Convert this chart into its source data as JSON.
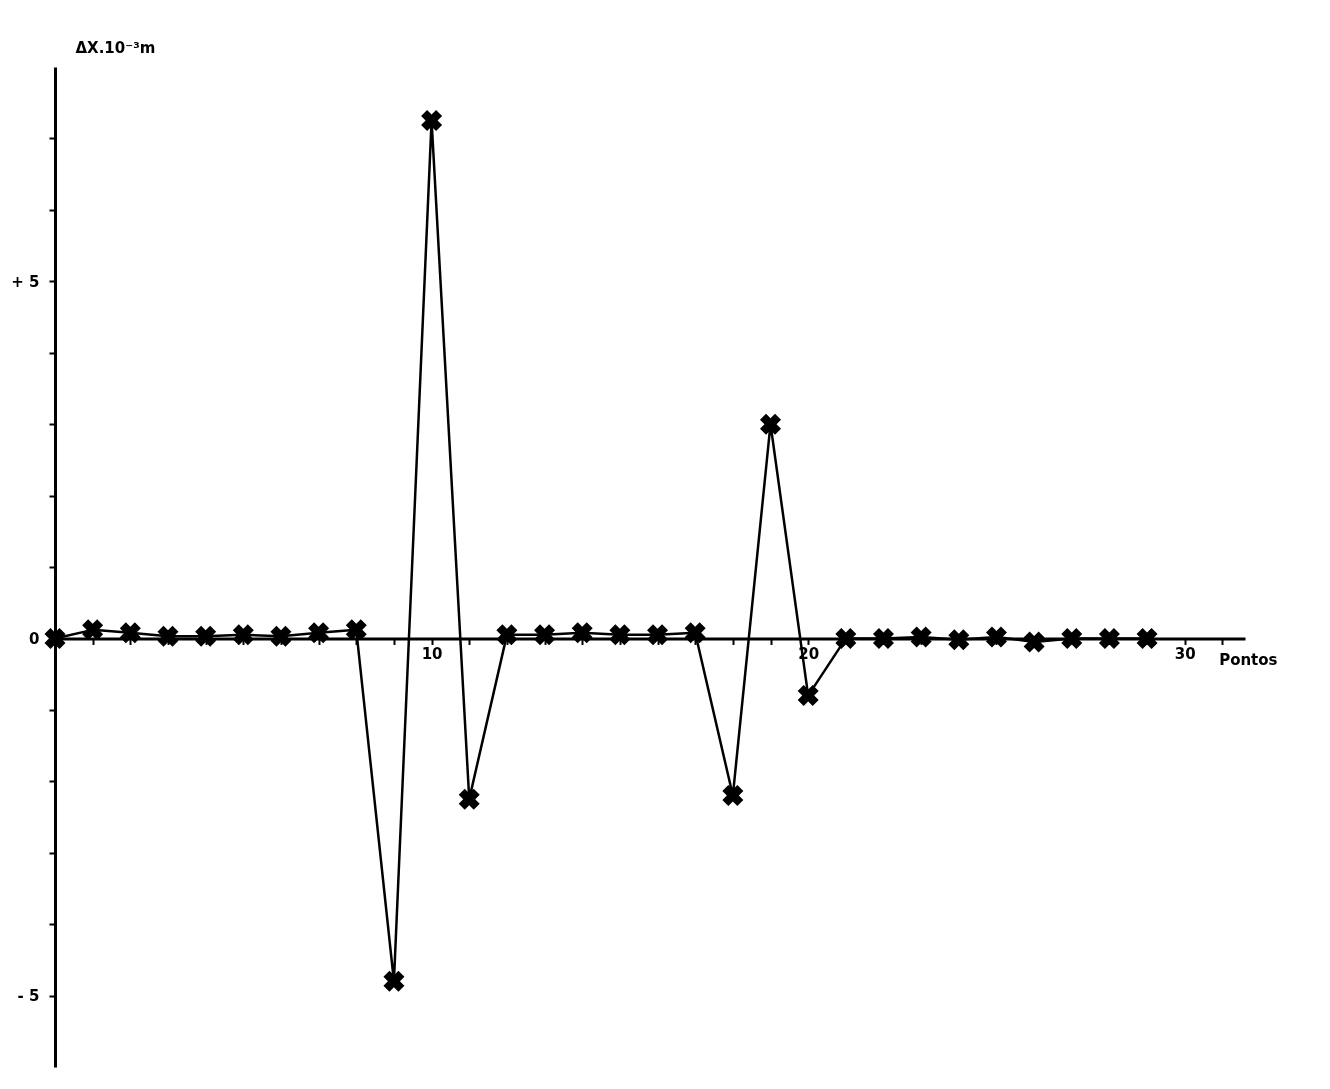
{
  "chart_data": {
    "type": "line",
    "xlabel": "Pontos",
    "ylabel": "ΔX.10⁻³m",
    "x": [
      0,
      1,
      2,
      3,
      4,
      5,
      6,
      7,
      8,
      9,
      10,
      11,
      12,
      13,
      14,
      15,
      16,
      17,
      18,
      19,
      20,
      21,
      22,
      23,
      24,
      25,
      26,
      27,
      28,
      29
    ],
    "series": [
      {
        "color": "#000000",
        "values": [
          0,
          0.12,
          0.08,
          0.03,
          0.03,
          0.05,
          0.03,
          0.08,
          0.12,
          -4.8,
          7.25,
          -2.25,
          0.05,
          0.05,
          0.08,
          0.05,
          0.05,
          0.08,
          -2.2,
          3.0,
          -0.8,
          0,
          0,
          0.02,
          -0.02,
          0.02,
          -0.05,
          0,
          0,
          0
        ]
      }
    ],
    "xlim": [
      0,
      31.6
    ],
    "ylim": [
      -6,
      8
    ],
    "xticks": [
      {
        "value": 1,
        "label": null
      },
      {
        "value": 2,
        "label": null
      },
      {
        "value": 3,
        "label": null
      },
      {
        "value": 4,
        "label": null
      },
      {
        "value": 5,
        "label": null
      },
      {
        "value": 6,
        "label": null
      },
      {
        "value": 7,
        "label": null
      },
      {
        "value": 8,
        "label": null
      },
      {
        "value": 9,
        "label": null
      },
      10,
      {
        "value": 11,
        "label": null
      },
      {
        "value": 12,
        "label": null
      },
      {
        "value": 13,
        "label": null
      },
      {
        "value": 14,
        "label": null
      },
      {
        "value": 15,
        "label": null
      },
      {
        "value": 16,
        "label": null
      },
      {
        "value": 17,
        "label": null
      },
      {
        "value": 18,
        "label": null
      },
      {
        "value": 19,
        "label": null
      },
      20,
      {
        "value": 21,
        "label": null
      },
      {
        "value": 22,
        "label": null
      },
      {
        "value": 23,
        "label": null
      },
      {
        "value": 24,
        "label": null
      },
      {
        "value": 25,
        "label": null
      },
      {
        "value": 26,
        "label": null
      },
      {
        "value": 27,
        "label": null
      },
      {
        "value": 28,
        "label": null
      },
      {
        "value": 29,
        "label": null
      },
      30,
      {
        "value": 31,
        "label": null
      }
    ],
    "yticks": [
      {
        "value": -5,
        "label": "- 5"
      },
      {
        "value": -4,
        "label": null
      },
      {
        "value": -3,
        "label": null
      },
      {
        "value": -2,
        "label": null
      },
      {
        "value": -1,
        "label": null
      },
      0,
      {
        "value": 1,
        "label": null
      },
      {
        "value": 2,
        "label": null
      },
      {
        "value": 3,
        "label": null
      },
      {
        "value": 4,
        "label": null
      },
      {
        "value": 5,
        "label": "+ 5"
      },
      {
        "value": 6,
        "label": null
      },
      {
        "value": 7,
        "label": null
      }
    ],
    "marker": "cross",
    "line_style": "solid",
    "grid": false,
    "legend": false
  }
}
